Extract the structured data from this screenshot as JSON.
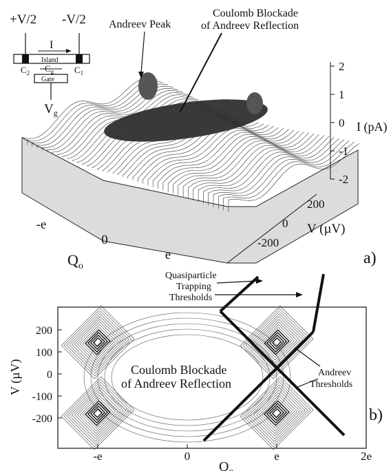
{
  "panel_a": {
    "label": "a)",
    "circuit": {
      "plus_v": "+V/2",
      "minus_v": "-V/2",
      "current": "I",
      "island": "Island",
      "c2": "C",
      "c2_sub": "2",
      "cg": "C",
      "cg_sub": "g",
      "c1": "C",
      "c1_sub": "1",
      "gate": "Gate",
      "vg": "V",
      "vg_sub": "g"
    },
    "annotations": {
      "andreev_peak": "Andreev Peak",
      "coulomb_line1": "Coulomb Blockade",
      "coulomb_line2": "of Andreev Reflection"
    },
    "z_axis": {
      "label": "I (pA)",
      "ticks": [
        "2",
        "1",
        "0",
        "-1",
        "-2"
      ]
    },
    "v_axis": {
      "label": "V (µV)",
      "ticks": [
        "200",
        "0",
        "-200"
      ]
    },
    "q_axis": {
      "label": "Q",
      "label_sub": "o",
      "ticks": [
        "-e",
        "0",
        "e"
      ]
    }
  },
  "panel_b": {
    "label": "b)",
    "annotations": {
      "quasi_line1": "Quasiparticle",
      "quasi_line2": "Trapping",
      "quasi_line3": "Thresholds",
      "coulomb_line1": "Coulomb Blockade",
      "coulomb_line2": "of Andreev Reflection",
      "andreev_line1": "Andreev",
      "andreev_line2": "Thresholds"
    },
    "y_axis": {
      "label": "V (µV)",
      "ticks": [
        "200",
        "100",
        "0",
        "-100",
        "-200"
      ]
    },
    "x_axis": {
      "label": "Q",
      "label_sub": "o",
      "ticks": [
        "-e",
        "0",
        "e",
        "2e"
      ]
    }
  }
}
